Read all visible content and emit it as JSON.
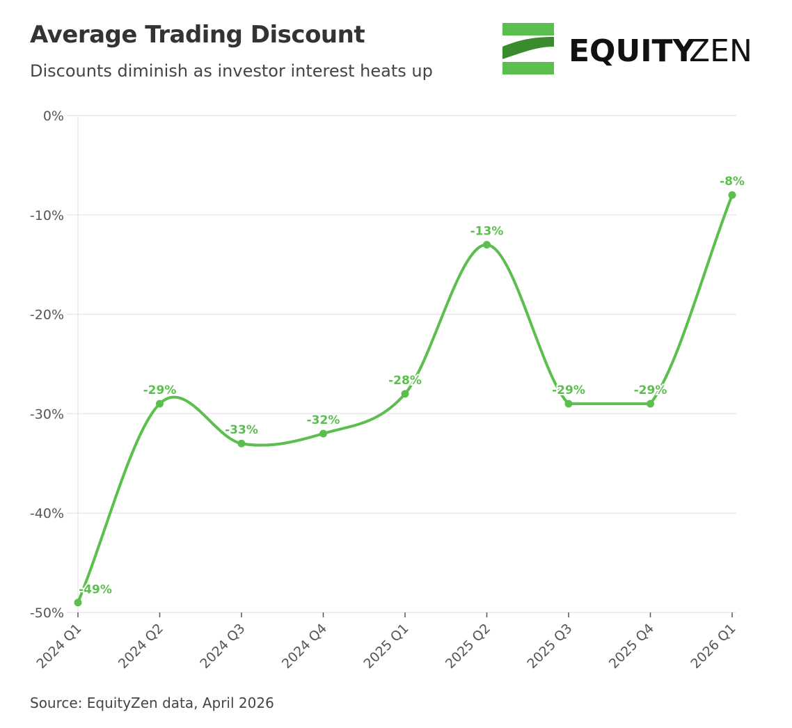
{
  "header": {
    "title": "Average Trading Discount",
    "subtitle": "Discounts diminish as investor interest heats up"
  },
  "logo": {
    "text_bold": "EQUITY",
    "text_light": "ZEN",
    "icon": "equityzen-stripes-icon"
  },
  "footer": {
    "source": "Source: EquityZen data, April 2026"
  },
  "colors": {
    "series": "#5bbf4d",
    "logo_green": "#5bbf4d",
    "logo_dark_green": "#3a8a2e",
    "grid": "#e9e9e9"
  },
  "chart_data": {
    "type": "line",
    "title": "Average Trading Discount",
    "subtitle": "Discounts diminish as investor interest heats up",
    "xlabel": "",
    "ylabel": "",
    "categories": [
      "2024 Q1",
      "2024 Q2",
      "2024 Q3",
      "2024 Q4",
      "2025 Q1",
      "2025 Q2",
      "2025 Q3",
      "2025 Q4",
      "2026 Q1"
    ],
    "series": [
      {
        "values": [
          -49,
          -29,
          -33,
          -32,
          -28,
          -13,
          -29,
          -29,
          -8
        ]
      }
    ],
    "data_labels": [
      "-49%",
      "-29%",
      "-33%",
      "-32%",
      "-28%",
      "-13%",
      "-29%",
      "-29%",
      "-8%"
    ],
    "ylim": [
      -50,
      0
    ],
    "yticks": [
      0,
      -10,
      -20,
      -30,
      -40,
      -50
    ],
    "ytick_labels": [
      "0%",
      "-10%",
      "-20%",
      "-30%",
      "-40%",
      "-50%"
    ],
    "grid": true,
    "legend": "none",
    "smooth": true
  }
}
